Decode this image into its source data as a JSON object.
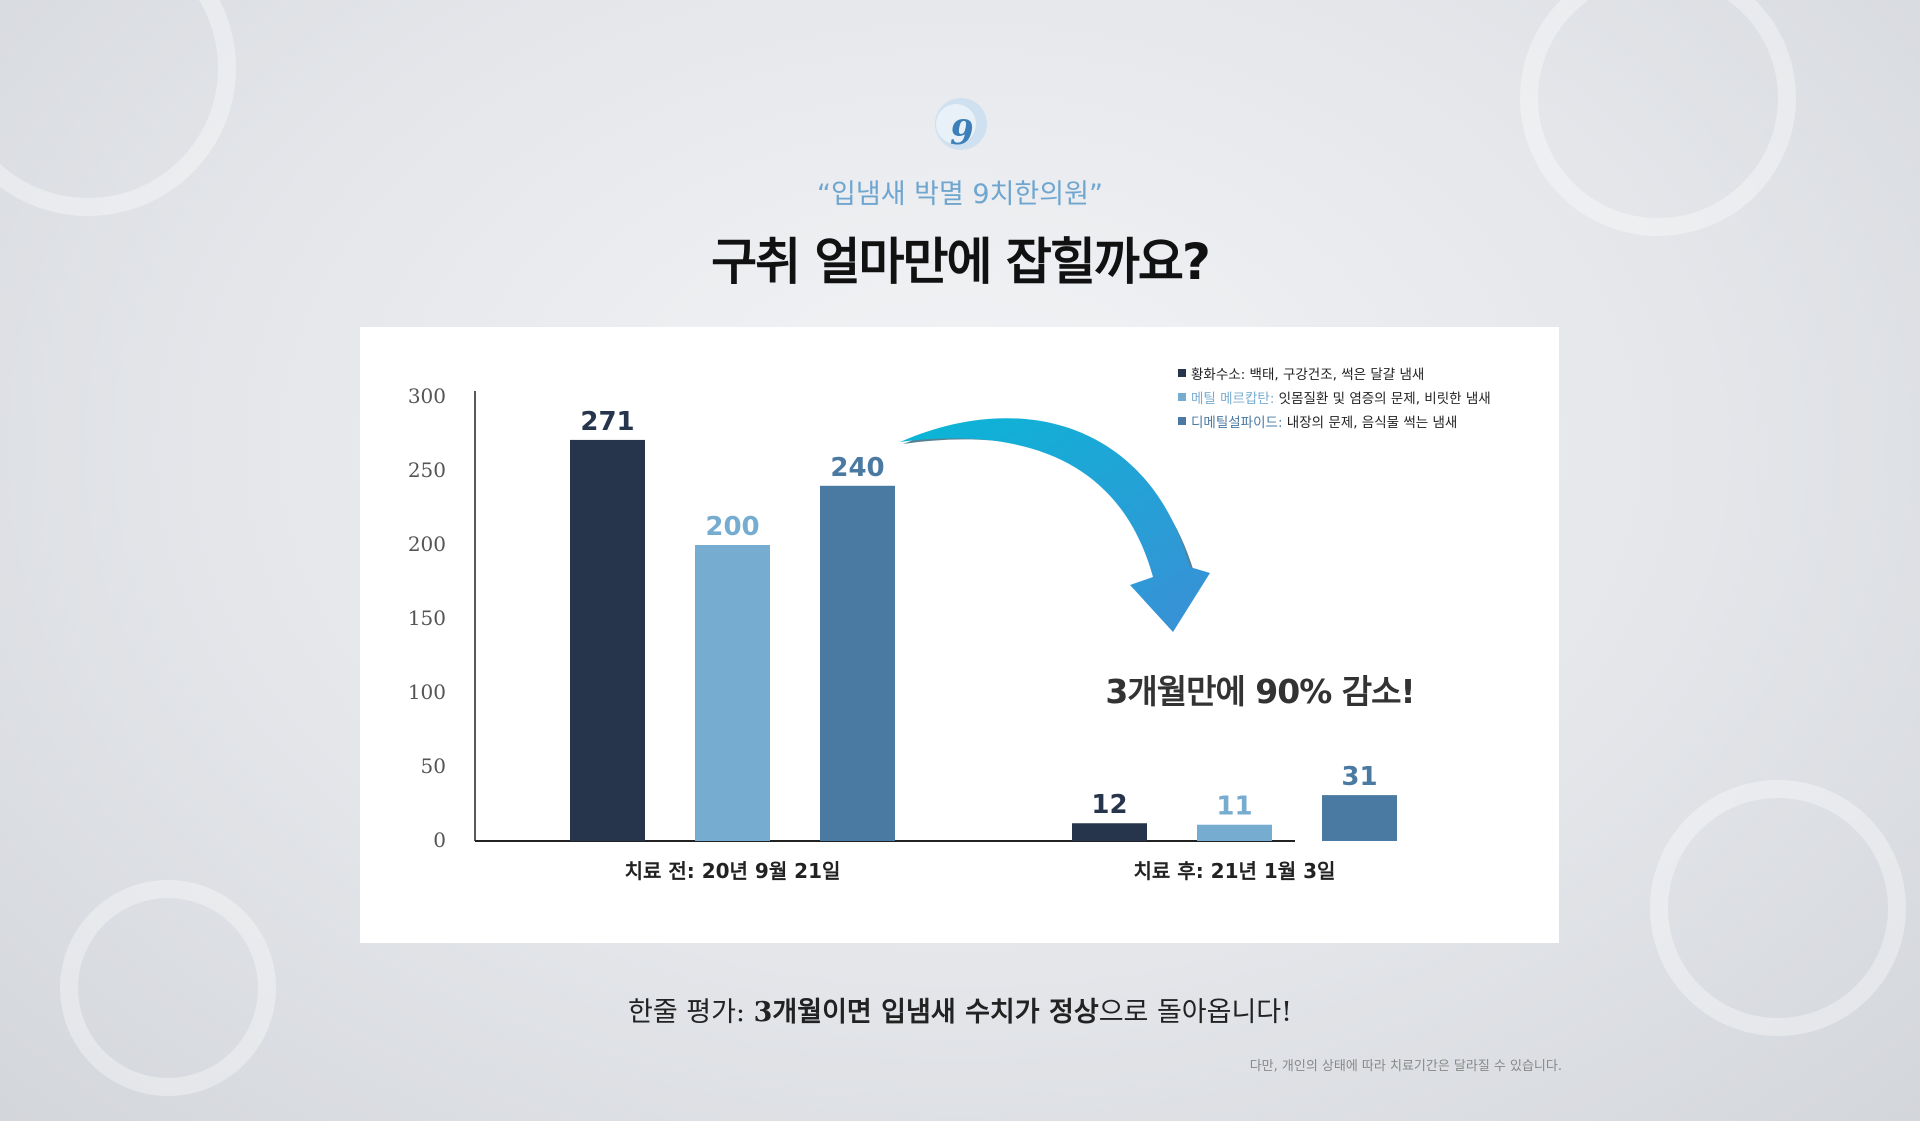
{
  "brand": {
    "logo_text": "9"
  },
  "header": {
    "kicker": "“입냄새 박멸 9치한의원”",
    "headline": "구취 얼마만에 잡힐까요?"
  },
  "chart_data": {
    "type": "bar",
    "categories": [
      "치료 전: 20년 9월 21일",
      "치료 후: 21년 1월 3일"
    ],
    "series": [
      {
        "name": "황화수소",
        "legend_detail": "백태, 구강건조, 썩은 달걀 냄새",
        "color": "#26354b",
        "values": [
          271,
          12
        ]
      },
      {
        "name": "메틸 메르캅탄",
        "legend_detail": "잇몸질환 및 염증의 문제, 비릿한 냄새",
        "color": "#77acd1",
        "values": [
          200,
          11
        ]
      },
      {
        "name": "디메틸설파이드",
        "legend_detail": "내장의 문제, 음식물 썩는 냄새",
        "color": "#4a79a1",
        "values": [
          240,
          31
        ]
      }
    ],
    "ylim": [
      0,
      300
    ],
    "yticks": [
      0,
      50,
      100,
      150,
      200,
      250,
      300
    ],
    "grid": false,
    "legend_position": "top-right",
    "annotation": "3개월만에 90% 감소!"
  },
  "summary": {
    "prefix": "한줄 평가: ",
    "highlight": "3개월이면 입냄새 수치가 정상",
    "suffix": "으로 돌아옵니다!"
  },
  "footnote": "다만, 개인의 상태에 따라 치료기간은 달라질 수 있습니다."
}
